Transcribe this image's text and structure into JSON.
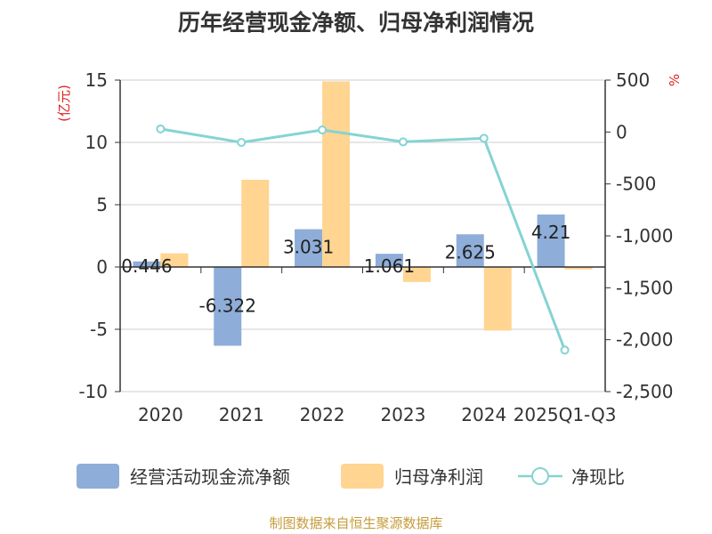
{
  "chart_data": {
    "type": "bar+line",
    "title": "历年经营现金净额、归母净利润情况",
    "categories": [
      "2020",
      "2021",
      "2022",
      "2023",
      "2024",
      "2025Q1-Q3"
    ],
    "series": [
      {
        "name": "经营活动现金流净额",
        "type": "bar",
        "axis": "left",
        "color": "#8eadd8",
        "values": [
          0.446,
          -6.322,
          3.031,
          1.061,
          2.625,
          4.21
        ]
      },
      {
        "name": "归母净利润",
        "type": "bar",
        "axis": "left",
        "color": "#ffd591",
        "values": [
          1.1,
          7.0,
          14.9,
          -1.2,
          -5.1,
          -0.2
        ]
      },
      {
        "name": "净现比",
        "type": "line",
        "axis": "right",
        "color": "#86d3d3",
        "values": [
          30,
          -100,
          20,
          -95,
          -60,
          -2100
        ]
      }
    ],
    "bar_labels": [
      "0.446",
      "-6.322",
      "3.031",
      "1.061",
      "2.625",
      "4.21"
    ],
    "y_left": {
      "label": "(亿元)",
      "min": -10,
      "max": 15,
      "ticks": [
        15,
        10,
        5,
        0,
        -5,
        -10
      ],
      "tick_labels": [
        "15",
        "10",
        "5",
        "0",
        "-5",
        "-10"
      ]
    },
    "y_right": {
      "label": "%",
      "min": -2500,
      "max": 500,
      "ticks": [
        500,
        0,
        -500,
        -1000,
        -1500,
        -2000,
        -2500
      ],
      "tick_labels": [
        "500",
        "0",
        "-500",
        "-1,000",
        "-1,500",
        "-2,000",
        "-2,500"
      ]
    },
    "legend_position": "bottom",
    "grid": true
  },
  "source": "制图数据来自恒生聚源数据库",
  "colors": {
    "title": "#333333",
    "axis": "#333333",
    "grid": "#cccccc",
    "unit": "#e02020",
    "source": "#c69c3b"
  }
}
